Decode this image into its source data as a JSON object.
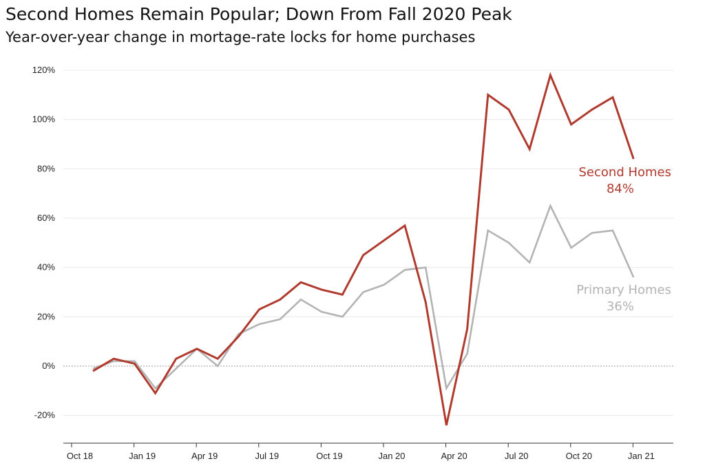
{
  "title": "Second Homes Remain Popular; Down From Fall 2020 Peak",
  "subtitle": "Year-over-year change in mortage-rate locks for home purchases",
  "colors": {
    "second_homes": "#b03a2e",
    "primary_homes": "#b3b3b3",
    "grid": "#e8e8e8",
    "axis": "#333333",
    "zero_line": "#999999"
  },
  "chart_data": {
    "type": "line",
    "title": "Second Homes Remain Popular; Down From Fall 2020 Peak",
    "subtitle": "Year-over-year change in mortage-rate locks for home purchases",
    "xlabel": "",
    "ylabel": "",
    "x": [
      "Nov 18",
      "Dec 18",
      "Jan 19",
      "Feb 19",
      "Mar 19",
      "Apr 19",
      "May 19",
      "Jun 19",
      "Jul 19",
      "Aug 19",
      "Sep 19",
      "Oct 19",
      "Nov 19",
      "Dec 19",
      "Jan 20",
      "Feb 20",
      "Mar 20",
      "Apr 20",
      "May 20",
      "Jun 20",
      "Jul 20",
      "Aug 20",
      "Sep 20",
      "Oct 20",
      "Nov 20",
      "Dec 20",
      "Jan 21"
    ],
    "x_ticks": [
      "Oct 18",
      "Jan 19",
      "Apr 19",
      "Jul 19",
      "Oct 19",
      "Jan 20",
      "Apr 20",
      "Jul 20",
      "Oct 20",
      "Jan 21"
    ],
    "y_ticks": [
      "-20%",
      "0%",
      "20%",
      "40%",
      "60%",
      "80%",
      "100%",
      "120%"
    ],
    "ylim": [
      -25,
      120
    ],
    "grid": true,
    "zero_line_dashed": true,
    "series": [
      {
        "name": "Second Homes",
        "end_label": "84%",
        "values": [
          -2,
          3,
          1,
          -11,
          3,
          7,
          3,
          12,
          23,
          27,
          34,
          31,
          29,
          45,
          51,
          57,
          26,
          -24,
          15,
          110,
          104,
          88,
          118,
          98,
          104,
          109,
          84
        ]
      },
      {
        "name": "Primary Homes",
        "end_label": "36%",
        "values": [
          -1,
          2,
          2,
          -9,
          -1,
          7,
          0,
          13,
          17,
          19,
          27,
          22,
          20,
          30,
          33,
          39,
          40,
          -9,
          5,
          55,
          50,
          42,
          65,
          48,
          54,
          55,
          36
        ]
      }
    ]
  }
}
